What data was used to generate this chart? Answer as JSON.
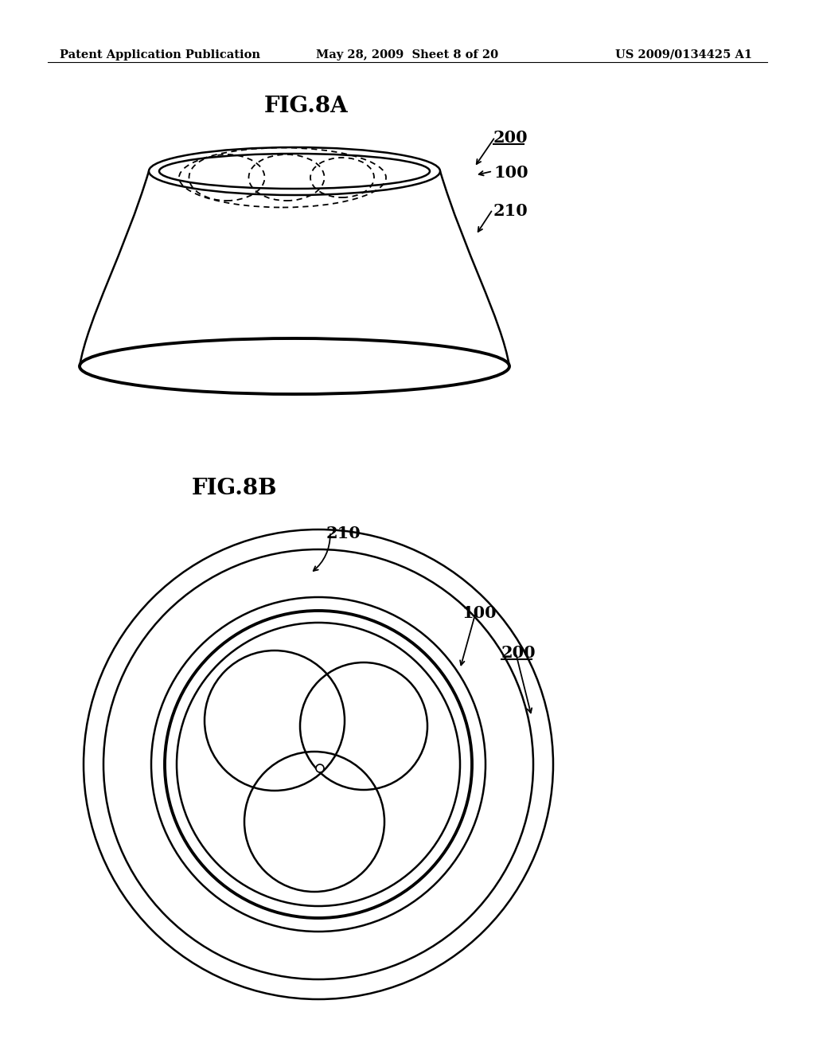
{
  "background_color": "#ffffff",
  "header_left": "Patent Application Publication",
  "header_center": "May 28, 2009  Sheet 8 of 20",
  "header_right": "US 2009/0134425 A1",
  "fig8a_title": "FIG.8A",
  "fig8b_title": "FIG.8B",
  "label_200_8a": "200",
  "label_100_8a": "100",
  "label_210_8a": "210",
  "label_210_8b": "210",
  "label_100_8b": "100",
  "label_200_8b": "200"
}
